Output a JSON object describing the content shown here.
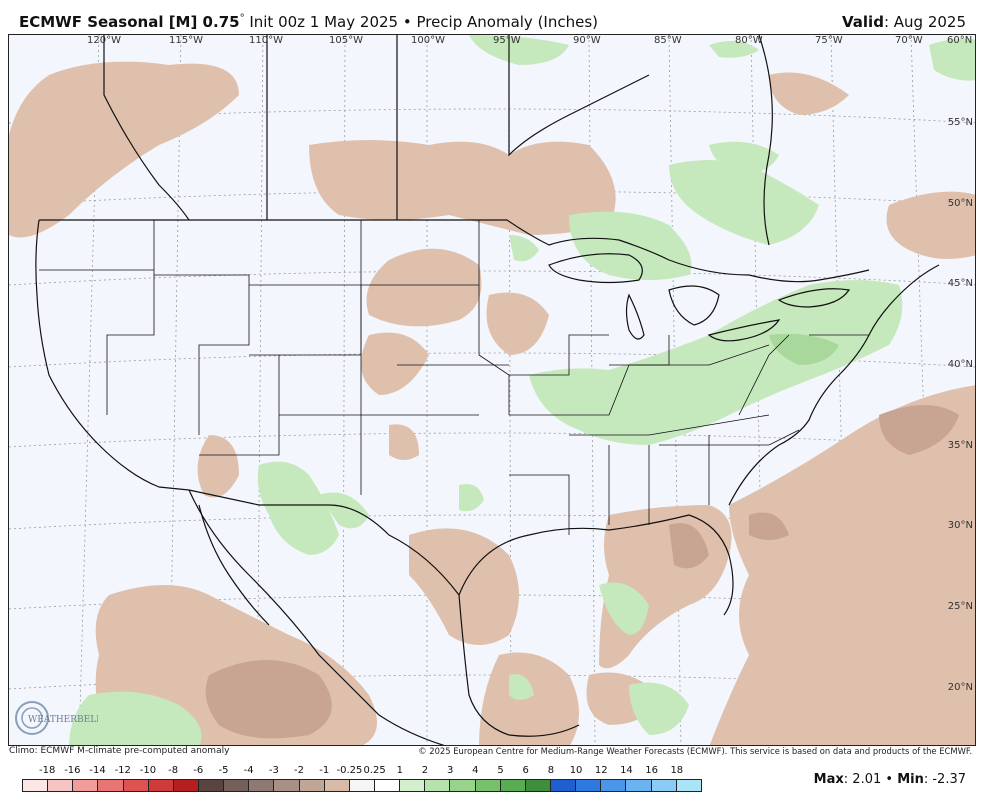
{
  "header": {
    "title_main": "ECMWF Seasonal [M] 0.75",
    "title_deg": "°",
    "title_sub": " Init 00z 1 May 2025 • Precip Anomaly (Inches)",
    "valid_label": "Valid",
    "valid_value": ": Aug 2025"
  },
  "map": {
    "lon_labels": [
      "120°W",
      "115°W",
      "110°W",
      "105°W",
      "100°W",
      "95°W",
      "90°W",
      "85°W",
      "80°W",
      "75°W",
      "70°W",
      "60°N"
    ],
    "lat_labels": [
      "55°N",
      "50°N",
      "45°N",
      "40°N",
      "35°N",
      "30°N",
      "25°N",
      "20°N"
    ],
    "colors": {
      "ocean_land_neutral": "#f3f6fd",
      "dry_light": "#dfc0ac",
      "dry_medium": "#c8a593",
      "wet_light": "#c6e8bd",
      "wet_medium": "#a9d89c",
      "boundary": "#111111",
      "grid": "#9a9a9a"
    },
    "logo_text": "WEATHERBELL"
  },
  "footer": {
    "left": "Climo: ECMWF M-climate pre-computed anomaly",
    "right": "© 2025 European Centre for Medium-Range Weather Forecasts (ECMWF). This service is based on data and products of the ECMWF."
  },
  "scale": {
    "labels": [
      "-18",
      "-16",
      "-14",
      "-12",
      "-10",
      "-8",
      "-6",
      "-5",
      "-4",
      "-3",
      "-2",
      "-1",
      "-0.25",
      "0.25",
      "1",
      "2",
      "3",
      "4",
      "5",
      "6",
      "8",
      "10",
      "12",
      "14",
      "16",
      "18"
    ],
    "colors": [
      "#fde6e6",
      "#f7c4c4",
      "#f29c9c",
      "#e97474",
      "#de5252",
      "#cf3a3a",
      "#b51f1f",
      "#5a4440",
      "#75605a",
      "#8e7a72",
      "#a89184",
      "#bfa696",
      "#d7bba8",
      "#f5f5f5",
      "#ffffff",
      "#d4efcd",
      "#b8e2ad",
      "#98d38b",
      "#77c16b",
      "#5aac54",
      "#3f8e3e",
      "#1f5fcf",
      "#2c7ae0",
      "#4a97ea",
      "#6ab2f0",
      "#8ccbf5",
      "#a9e4f7"
    ]
  },
  "stats": {
    "max_label": "Max",
    "max_value": ": 2.01",
    "sep": " • ",
    "min_label": "Min",
    "min_value": ": -2.37"
  }
}
